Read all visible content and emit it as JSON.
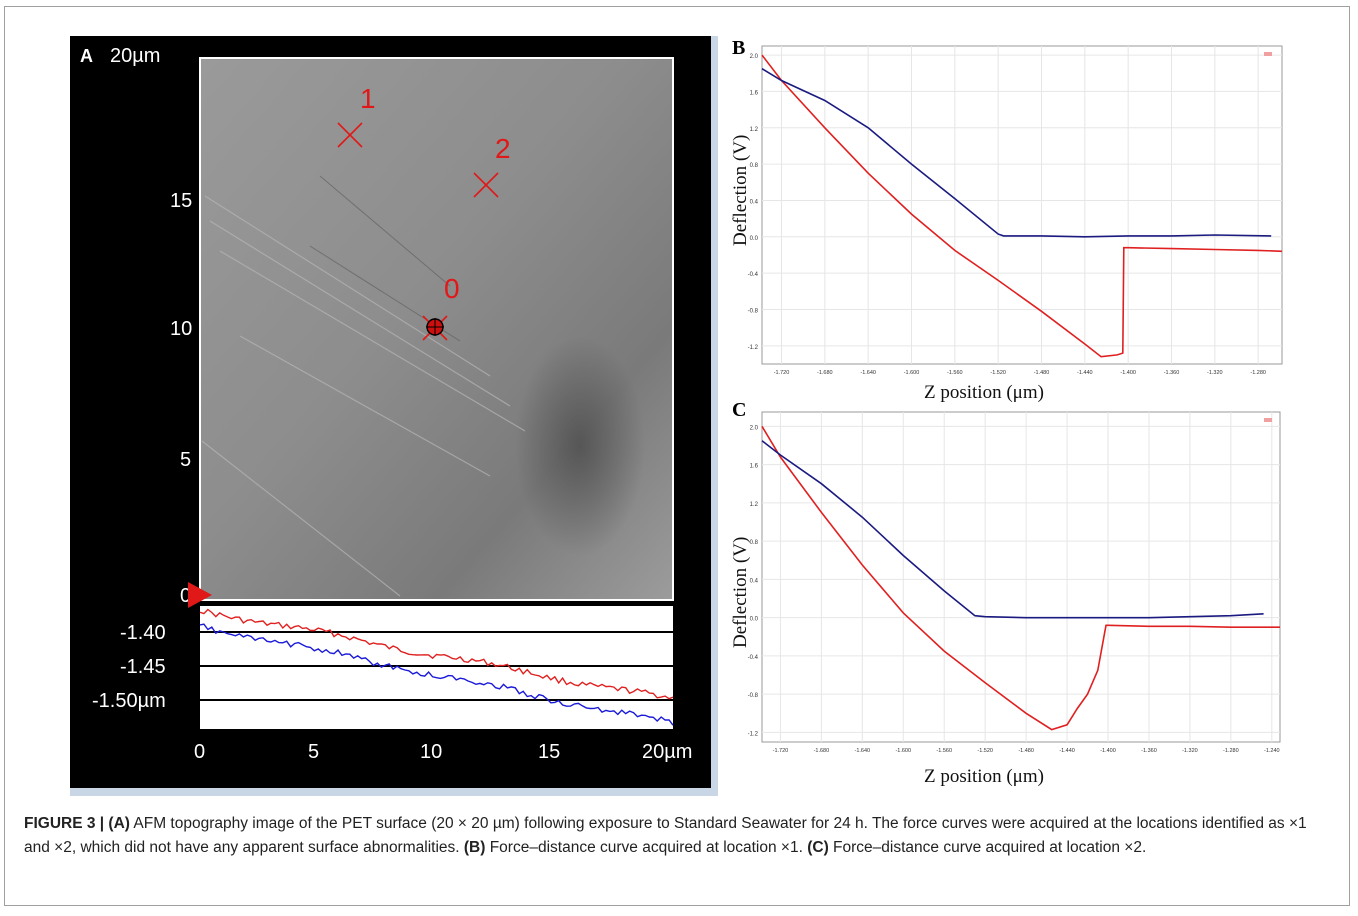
{
  "panel_a": {
    "letter": "A",
    "y_top_label": "20µm",
    "y_ticks": [
      "15",
      "10",
      "5",
      "0"
    ],
    "markers": [
      {
        "id": "1",
        "x": 6.4,
        "y": 17.4
      },
      {
        "id": "2",
        "x": 12.1,
        "y": 15.4
      },
      {
        "id": "0",
        "x": 10.1,
        "y": 10.0
      }
    ],
    "profile": {
      "y_labels": [
        "-1.40",
        "-1.45",
        "-1.50µm"
      ],
      "x_labels": [
        "0",
        "5",
        "10",
        "15",
        "20µm"
      ],
      "red_color": "#e02020",
      "blue_color": "#1a1ad8"
    }
  },
  "panel_b": {
    "letter": "B",
    "ylabel": "Deflection (V)",
    "xlabel": "Z position (μm)",
    "y_ticks": [
      "2.0",
      "1.6",
      "1.2",
      "0.8",
      "0.4",
      "0.0",
      "-0.4",
      "-0.8",
      "-1.2"
    ],
    "x_ticks": [
      "-1.720",
      "-1.680",
      "-1.640",
      "-1.600",
      "-1.560",
      "-1.520",
      "-1.480",
      "-1.440",
      "-1.400",
      "-1.360",
      "-1.320",
      "-1.280"
    ]
  },
  "panel_c": {
    "letter": "C",
    "ylabel": "Deflection (V)",
    "xlabel": "Z position (μm)",
    "y_ticks": [
      "2.0",
      "1.6",
      "1.2",
      "0.8",
      "0.4",
      "0.0",
      "-0.4",
      "-0.8",
      "-1.2"
    ],
    "x_ticks": [
      "-1.720",
      "-1.680",
      "-1.640",
      "-1.600",
      "-1.560",
      "-1.520",
      "-1.480",
      "-1.440",
      "-1.400",
      "-1.360",
      "-1.320",
      "-1.280",
      "-1.240"
    ]
  },
  "chart_data": [
    {
      "type": "line",
      "title": "B",
      "xlabel": "Z position (μm)",
      "ylabel": "Deflection (V)",
      "xlim": [
        -1.738,
        -1.258
      ],
      "ylim": [
        -1.4,
        2.1
      ],
      "grid": true,
      "series": [
        {
          "color": "#e02020",
          "x": [
            -1.738,
            -1.72,
            -1.68,
            -1.64,
            -1.6,
            -1.56,
            -1.52,
            -1.48,
            -1.44,
            -1.425,
            -1.41,
            -1.405,
            -1.404,
            -1.4,
            -1.36,
            -1.32,
            -1.28,
            -1.258
          ],
          "y": [
            2.0,
            1.72,
            1.2,
            0.7,
            0.25,
            -0.15,
            -0.48,
            -0.82,
            -1.18,
            -1.32,
            -1.3,
            -1.28,
            -0.12,
            -0.12,
            -0.13,
            -0.14,
            -0.15,
            -0.16
          ]
        },
        {
          "color": "#1a1a80",
          "x": [
            -1.738,
            -1.72,
            -1.68,
            -1.64,
            -1.6,
            -1.56,
            -1.52,
            -1.515,
            -1.48,
            -1.44,
            -1.4,
            -1.36,
            -1.32,
            -1.268
          ],
          "y": [
            1.85,
            1.72,
            1.5,
            1.2,
            0.8,
            0.42,
            0.03,
            0.01,
            0.01,
            0.0,
            0.01,
            0.01,
            0.02,
            0.01
          ]
        }
      ]
    },
    {
      "type": "line",
      "title": "C",
      "xlabel": "Z position (μm)",
      "ylabel": "Deflection (V)",
      "xlim": [
        -1.738,
        -1.232
      ],
      "ylim": [
        -1.3,
        2.15
      ],
      "grid": true,
      "series": [
        {
          "color": "#e02020",
          "x": [
            -1.738,
            -1.72,
            -1.68,
            -1.64,
            -1.6,
            -1.56,
            -1.52,
            -1.48,
            -1.455,
            -1.44,
            -1.43,
            -1.42,
            -1.41,
            -1.402,
            -1.4,
            -1.36,
            -1.32,
            -1.28,
            -1.24,
            -1.232
          ],
          "y": [
            2.0,
            1.68,
            1.1,
            0.55,
            0.05,
            -0.35,
            -0.68,
            -1.0,
            -1.17,
            -1.12,
            -0.95,
            -0.8,
            -0.55,
            -0.08,
            -0.08,
            -0.09,
            -0.09,
            -0.1,
            -0.1,
            -0.1
          ]
        },
        {
          "color": "#1a1a80",
          "x": [
            -1.738,
            -1.72,
            -1.68,
            -1.64,
            -1.6,
            -1.56,
            -1.53,
            -1.52,
            -1.48,
            -1.44,
            -1.4,
            -1.36,
            -1.32,
            -1.28,
            -1.248
          ],
          "y": [
            1.85,
            1.7,
            1.4,
            1.05,
            0.65,
            0.28,
            0.02,
            0.01,
            0.0,
            0.0,
            0.0,
            0.0,
            0.01,
            0.02,
            0.04
          ]
        }
      ]
    }
  ],
  "caption": {
    "label": "FIGURE 3 | (A)",
    "part1": " AFM topography image of the PET surface (20 × 20 µm) following exposure to Standard Seawater for 24 h. The force curves were acquired at the locations identified as ×1 and ×2, which did not have any apparent surface abnormalities. ",
    "b_label": "(B)",
    "part2": " Force–distance curve acquired at location ×1. ",
    "c_label": "(C)",
    "part3": " Force–distance curve acquired at location ×2."
  }
}
